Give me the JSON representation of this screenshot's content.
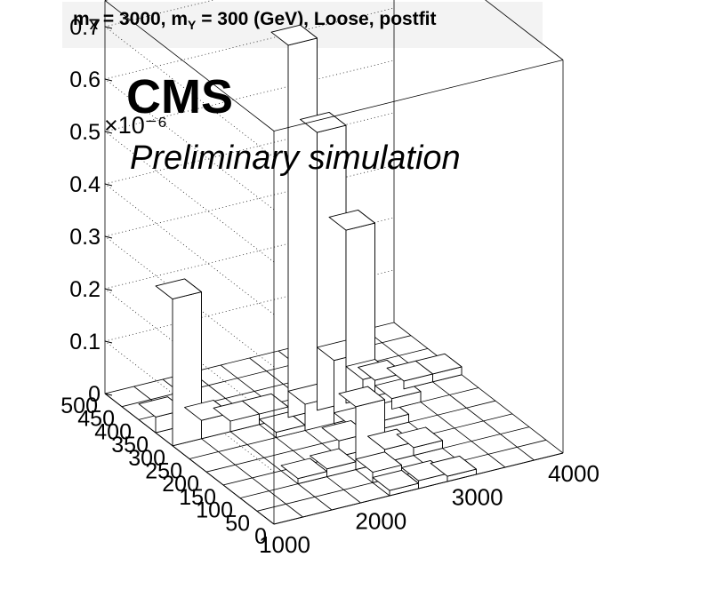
{
  "title": {
    "p1": "m",
    "s1": "X",
    "p2": " = 3000, m",
    "s2": "Y",
    "p3": " = 300 (GeV), Loose, postfit"
  },
  "labels": {
    "brand": "CMS",
    "subtitle": "Preliminary simulation"
  },
  "chart_data": {
    "type": "lego",
    "title": "m_X = 3000, m_Y = 300 (GeV), Loose, postfit",
    "x_range": [
      1000,
      4000
    ],
    "y_range": [
      0,
      500
    ],
    "z_range": [
      0,
      0.75
    ],
    "z_exponent": "×10⁻⁶",
    "x_ticks": [
      "1000",
      "2000",
      "3000",
      "4000"
    ],
    "y_ticks": [
      "0",
      "50",
      "100",
      "150",
      "200",
      "250",
      "300",
      "350",
      "400",
      "450",
      "500"
    ],
    "z_ticks": [
      "0",
      "0.1",
      "0.2",
      "0.3",
      "0.4",
      "0.5",
      "0.6",
      "0.7"
    ],
    "bars": [
      {
        "x0": 1000,
        "x1": 1300,
        "y0": 300,
        "y1": 350,
        "z": 0.28
      },
      {
        "x0": 1000,
        "x1": 1300,
        "y0": 350,
        "y1": 400,
        "z": 0.03
      },
      {
        "x0": 1300,
        "x1": 1600,
        "y0": 300,
        "y1": 350,
        "z": 0.035
      },
      {
        "x0": 1600,
        "x1": 1900,
        "y0": 300,
        "y1": 350,
        "z": 0.02
      },
      {
        "x0": 1900,
        "x1": 2200,
        "y0": 300,
        "y1": 350,
        "z": 0.02
      },
      {
        "x0": 1900,
        "x1": 2200,
        "y0": 250,
        "y1": 300,
        "z": 0.01
      },
      {
        "x0": 2200,
        "x1": 2500,
        "y0": 300,
        "y1": 350,
        "z": 0.71
      },
      {
        "x0": 2200,
        "x1": 2500,
        "y0": 250,
        "y1": 300,
        "z": 0.05
      },
      {
        "x0": 2500,
        "x1": 2800,
        "y0": 300,
        "y1": 350,
        "z": 0.53
      },
      {
        "x0": 2500,
        "x1": 2800,
        "y0": 250,
        "y1": 300,
        "z": 0.12
      },
      {
        "x0": 2500,
        "x1": 2800,
        "y0": 200,
        "y1": 250,
        "z": 0.02
      },
      {
        "x0": 2800,
        "x1": 3100,
        "y0": 300,
        "y1": 350,
        "z": 0.33
      },
      {
        "x0": 2800,
        "x1": 3100,
        "y0": 250,
        "y1": 300,
        "z": 0.07
      },
      {
        "x0": 2800,
        "x1": 3100,
        "y0": 200,
        "y1": 250,
        "z": 0.015
      },
      {
        "x0": 3100,
        "x1": 3400,
        "y0": 300,
        "y1": 350,
        "z": 0.03
      },
      {
        "x0": 3100,
        "x1": 3400,
        "y0": 250,
        "y1": 300,
        "z": 0.02
      },
      {
        "x0": 3400,
        "x1": 3700,
        "y0": 300,
        "y1": 350,
        "z": 0.015
      },
      {
        "x0": 3700,
        "x1": 4000,
        "y0": 300,
        "y1": 350,
        "z": 0.015
      },
      {
        "x0": 2200,
        "x1": 2500,
        "y0": 100,
        "y1": 150,
        "z": 0.12
      },
      {
        "x0": 2200,
        "x1": 2500,
        "y0": 150,
        "y1": 200,
        "z": 0.03
      },
      {
        "x0": 2500,
        "x1": 2800,
        "y0": 100,
        "y1": 150,
        "z": 0.025
      },
      {
        "x0": 2800,
        "x1": 3100,
        "y0": 100,
        "y1": 150,
        "z": 0.015
      },
      {
        "x0": 2200,
        "x1": 2500,
        "y0": 50,
        "y1": 100,
        "z": 0.02
      },
      {
        "x0": 2200,
        "x1": 2500,
        "y0": 0,
        "y1": 50,
        "z": 0.01
      },
      {
        "x0": 2500,
        "x1": 2800,
        "y0": 0,
        "y1": 50,
        "z": 0.015
      },
      {
        "x0": 2800,
        "x1": 3100,
        "y0": 0,
        "y1": 50,
        "z": 0.01
      },
      {
        "x0": 1600,
        "x1": 1900,
        "y0": 100,
        "y1": 150,
        "z": 0.01
      },
      {
        "x0": 1900,
        "x1": 2200,
        "y0": 100,
        "y1": 150,
        "z": 0.015
      }
    ]
  }
}
